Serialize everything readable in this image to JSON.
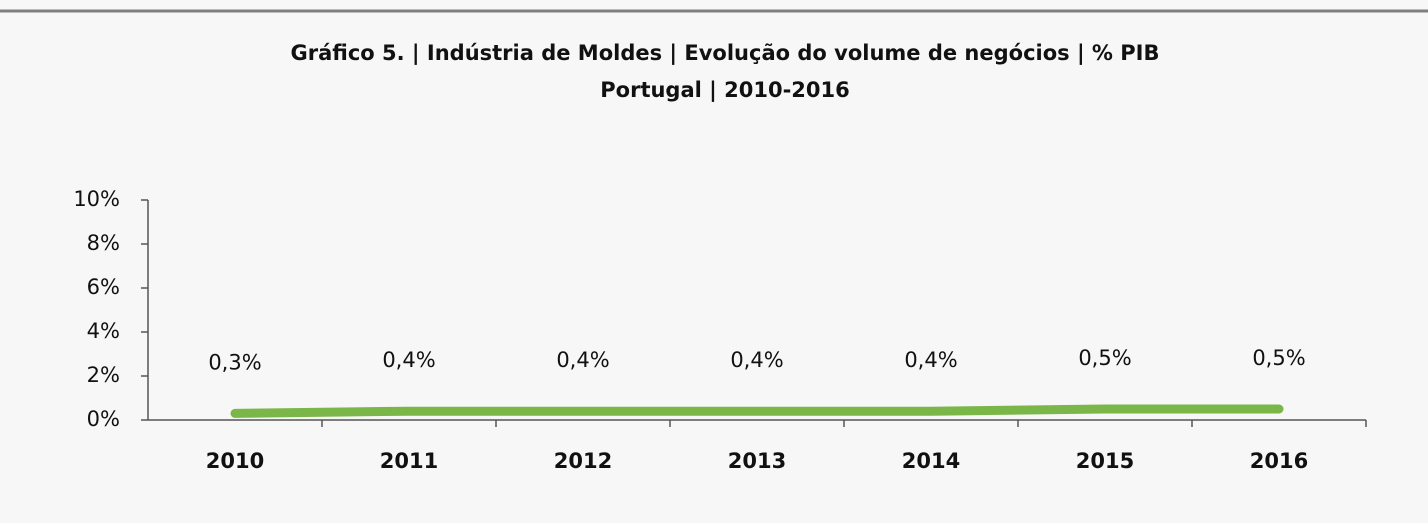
{
  "chart_data": {
    "type": "line",
    "title": "Gráfico 5. | Indústria de Moldes | Evolução do volume de negócios | % PIB",
    "subtitle": "Portugal | 2010-2016",
    "categories": [
      "2010",
      "2011",
      "2012",
      "2013",
      "2014",
      "2015",
      "2016"
    ],
    "values": [
      0.3,
      0.4,
      0.4,
      0.4,
      0.4,
      0.5,
      0.5
    ],
    "value_labels": [
      "0,3%",
      "0,4%",
      "0,4%",
      "0,4%",
      "0,4%",
      "0,5%",
      "0,5%"
    ],
    "color": "#7ab648",
    "ylim": [
      0,
      10
    ],
    "yticks": [
      {
        "value": 0,
        "label": "0%"
      },
      {
        "value": 2,
        "label": "2%"
      },
      {
        "value": 4,
        "label": "4%"
      },
      {
        "value": 6,
        "label": "6%"
      },
      {
        "value": 8,
        "label": "8%"
      },
      {
        "value": 10,
        "label": "10%"
      }
    ],
    "grid": false
  }
}
